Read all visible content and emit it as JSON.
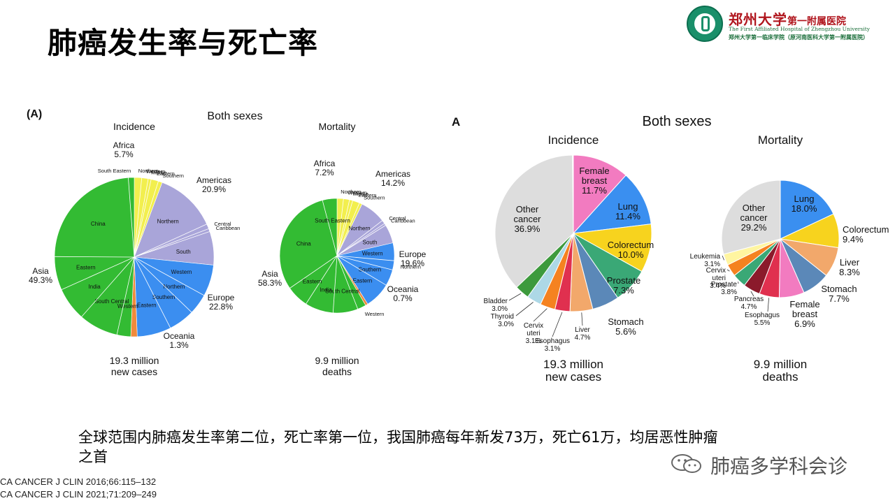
{
  "slide": {
    "title": "肺癌发生率与死亡率",
    "caption_line1": "全球范围内肺癌发生率第二位，死亡率第一位，我国肺癌每年新发73万，死亡61万，均居恶性肿瘤",
    "caption_line2": "之首",
    "refs": [
      "CA CANCER J CLIN 2016;66:115–132",
      "CA CANCER J CLIN 2021;71:209–249"
    ],
    "watermark": "肺癌多学科会诊",
    "logo": {
      "name": "郑州大学",
      "name_sub": "第一附属医院",
      "english": "The First Affiliated Hospital of Zhengzhou University",
      "chinese_sub": "郑州大学第一临床学院（原河南医科大学第一附属医院）"
    }
  },
  "left_figure": {
    "panel_label": "(A)",
    "header": "Both sexes",
    "charts": [
      {
        "title": "Incidence",
        "footer1": "19.3 million",
        "footer2": "new cases",
        "regions": [
          {
            "name": "Africa",
            "pct": "5.7%",
            "color": "#f2ef4e",
            "value": 5.7,
            "subs": [
              {
                "name": "Northern",
                "v": 1.5
              },
              {
                "name": "Western",
                "v": 1.3
              },
              {
                "name": "Middle",
                "v": 0.6
              },
              {
                "name": "Eastern",
                "v": 1.5
              },
              {
                "name": "Southern",
                "v": 0.8
              }
            ]
          },
          {
            "name": "Americas",
            "pct": "20.9%",
            "color": "#a9a5d9",
            "value": 20.9,
            "subs": [
              {
                "name": "Northern",
                "v": 12.5
              },
              {
                "name": "Central",
                "v": 1.0
              },
              {
                "name": "Caribbean",
                "v": 0.6
              },
              {
                "name": "South",
                "v": 6.8
              }
            ]
          },
          {
            "name": "Europe",
            "pct": "22.8%",
            "color": "#3b8ef0",
            "value": 22.8,
            "subs": [
              {
                "name": "Western",
                "v": 6.4
              },
              {
                "name": "Northern",
                "v": 4.2
              },
              {
                "name": "Southern",
                "v": 5.3
              },
              {
                "name": "Eastern",
                "v": 6.9
              }
            ]
          },
          {
            "name": "Oceania",
            "pct": "1.3%",
            "color": "#f08a3c",
            "value": 1.3,
            "subs": []
          },
          {
            "name": "Asia",
            "pct": "49.3%",
            "color": "#33bb33",
            "value": 49.3,
            "subs": [
              {
                "name": "Western",
                "v": 2.8
              },
              {
                "name": "South Central",
                "v": 8.0
              },
              {
                "name": "India",
                "v": 6.8
              },
              {
                "name": "Eastern",
                "v": 6.8
              },
              {
                "name": "China",
                "v": 23.7
              },
              {
                "name": "South Eastern",
                "v": 1.2
              }
            ]
          }
        ]
      },
      {
        "title": "Mortality",
        "footer1": "9.9 million",
        "footer2": "deaths",
        "regions": [
          {
            "name": "Africa",
            "pct": "7.2%",
            "color": "#f2ef4e",
            "value": 7.2,
            "subs": [
              {
                "name": "Northern",
                "v": 1.8
              },
              {
                "name": "Western",
                "v": 1.7
              },
              {
                "name": "Middle",
                "v": 0.9
              },
              {
                "name": "Eastern",
                "v": 2.0
              },
              {
                "name": "Southern",
                "v": 0.8
              }
            ]
          },
          {
            "name": "Americas",
            "pct": "14.2%",
            "color": "#a9a5d9",
            "value": 14.2,
            "subs": [
              {
                "name": "Northern",
                "v": 7.3
              },
              {
                "name": "Central",
                "v": 1.0
              },
              {
                "name": "Caribbean",
                "v": 0.6
              },
              {
                "name": "South",
                "v": 5.3
              }
            ]
          },
          {
            "name": "Europe",
            "pct": "19.6%",
            "color": "#3b8ef0",
            "value": 19.6,
            "subs": [
              {
                "name": "Western",
                "v": 5.0
              },
              {
                "name": "Northern",
                "v": 2.6
              },
              {
                "name": "Southern",
                "v": 4.6
              },
              {
                "name": "Eastern",
                "v": 7.4
              }
            ]
          },
          {
            "name": "Oceania",
            "pct": "0.7%",
            "color": "#f08a3c",
            "value": 0.7,
            "subs": []
          },
          {
            "name": "Asia",
            "pct": "58.3%",
            "color": "#33bb33",
            "value": 58.3,
            "subs": [
              {
                "name": "Western",
                "v": 2.4
              },
              {
                "name": "South Central",
                "v": 7.0
              },
              {
                "name": "India",
                "v": 8.0
              },
              {
                "name": "Eastern",
                "v": 6.3
              },
              {
                "name": "China",
                "v": 30.5
              },
              {
                "name": "South Eastern",
                "v": 4.1
              }
            ]
          }
        ]
      }
    ]
  },
  "right_figure": {
    "panel_label": "A",
    "header": "Both sexes",
    "charts": [
      {
        "title": "Incidence",
        "footer1": "19.3 million",
        "footer2": "new cases",
        "slices": [
          {
            "name": "Female breast",
            "value": 11.7,
            "pct": "11.7%",
            "color": "#f27bc0"
          },
          {
            "name": "Lung",
            "value": 11.4,
            "pct": "11.4%",
            "color": "#3a8ff0"
          },
          {
            "name": "Colorectum",
            "value": 10.0,
            "pct": "10.0%",
            "color": "#f7d31e"
          },
          {
            "name": "Prostate",
            "value": 7.3,
            "pct": "7.3%",
            "color": "#3aa876"
          },
          {
            "name": "Stomach",
            "value": 5.6,
            "pct": "5.6%",
            "color": "#5b88b8"
          },
          {
            "name": "Liver",
            "value": 4.7,
            "pct": "4.7%",
            "color": "#f2a86b"
          },
          {
            "name": "Esophagus",
            "value": 3.1,
            "pct": "3.1%",
            "color": "#e0304f"
          },
          {
            "name": "Cervix uteri",
            "value": 3.1,
            "pct": "3.1%",
            "color": "#f58220"
          },
          {
            "name": "Thyroid",
            "value": 3.0,
            "pct": "3.0%",
            "color": "#add8e6"
          },
          {
            "name": "Bladder",
            "value": 3.0,
            "pct": "3.0%",
            "color": "#3d9a3d"
          },
          {
            "name": "Other cancer",
            "value": 36.9,
            "pct": "36.9%",
            "color": "#dddddd"
          }
        ]
      },
      {
        "title": "Mortality",
        "footer1": "9.9 million",
        "footer2": "deaths",
        "slices": [
          {
            "name": "Lung",
            "value": 18.0,
            "pct": "18.0%",
            "color": "#3a8ff0"
          },
          {
            "name": "Colorectum",
            "value": 9.4,
            "pct": "9.4%",
            "color": "#f7d31e"
          },
          {
            "name": "Liver",
            "value": 8.3,
            "pct": "8.3%",
            "color": "#f2a86b"
          },
          {
            "name": "Stomach",
            "value": 7.7,
            "pct": "7.7%",
            "color": "#5b88b8"
          },
          {
            "name": "Female breast",
            "value": 6.9,
            "pct": "6.9%",
            "color": "#f27bc0"
          },
          {
            "name": "Esophagus",
            "value": 5.5,
            "pct": "5.5%",
            "color": "#e0304f"
          },
          {
            "name": "Pancreas",
            "value": 4.7,
            "pct": "4.7%",
            "color": "#8b1a2b"
          },
          {
            "name": "Prostate",
            "value": 3.8,
            "pct": "3.8%",
            "color": "#3aa876"
          },
          {
            "name": "Cervix uteri",
            "value": 3.4,
            "pct": "3.4%",
            "color": "#f58220"
          },
          {
            "name": "Leukemia",
            "value": 3.1,
            "pct": "3.1%",
            "color": "#fff5a0"
          },
          {
            "name": "Other cancer",
            "value": 29.2,
            "pct": "29.2%",
            "color": "#dddddd"
          }
        ]
      }
    ]
  },
  "chart_data": [
    {
      "type": "pie",
      "title": "Incidence",
      "categories": [
        "Africa",
        "Americas",
        "Europe",
        "Oceania",
        "Asia"
      ],
      "values": [
        5.7,
        20.9,
        22.8,
        1.3,
        49.3
      ]
    },
    {
      "type": "pie",
      "title": "Mortality",
      "categories": [
        "Africa",
        "Americas",
        "Europe",
        "Oceania",
        "Asia"
      ],
      "values": [
        7.2,
        14.2,
        19.6,
        0.7,
        58.3
      ]
    },
    {
      "type": "pie",
      "title": "Incidence",
      "categories": [
        "Female breast",
        "Lung",
        "Colorectum",
        "Prostate",
        "Stomach",
        "Liver",
        "Esophagus",
        "Cervix uteri",
        "Thyroid",
        "Bladder",
        "Other cancer"
      ],
      "values": [
        11.7,
        11.4,
        10.0,
        7.3,
        5.6,
        4.7,
        3.1,
        3.1,
        3.0,
        3.0,
        36.9
      ]
    },
    {
      "type": "pie",
      "title": "Mortality",
      "categories": [
        "Lung",
        "Colorectum",
        "Liver",
        "Stomach",
        "Female breast",
        "Esophagus",
        "Pancreas",
        "Prostate",
        "Cervix uteri",
        "Leukemia",
        "Other cancer"
      ],
      "values": [
        18.0,
        9.4,
        8.3,
        7.7,
        6.9,
        5.5,
        4.7,
        3.8,
        3.4,
        3.1,
        29.2
      ]
    }
  ]
}
